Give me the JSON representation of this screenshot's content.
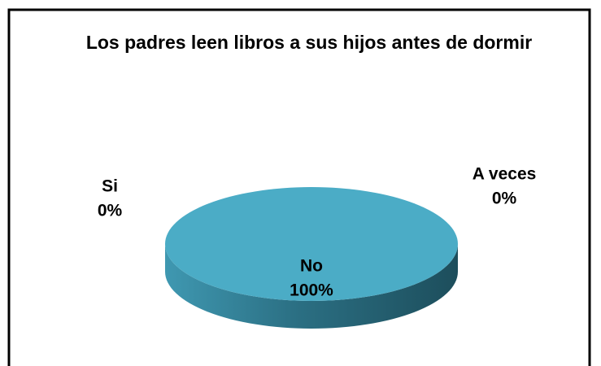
{
  "chart_data": {
    "type": "pie3d",
    "title": "Los padres leen libros a sus hijos antes de dormir",
    "categories": [
      "Si",
      "No",
      "A veces"
    ],
    "values": [
      0,
      100,
      0
    ],
    "value_labels": [
      "0%",
      "100%",
      "0%"
    ],
    "color": "#4bacc6"
  }
}
